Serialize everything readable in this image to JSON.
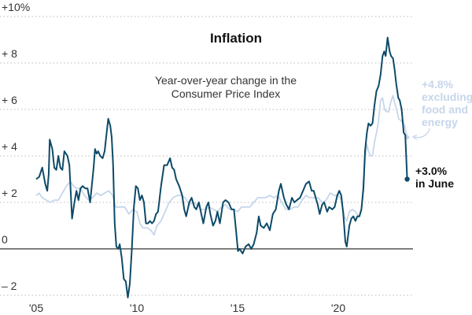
{
  "chart_data": {
    "type": "line",
    "title": "Inflation",
    "subtitle": [
      "Year-over-year change in the",
      "Consumer Price Index"
    ],
    "ylim": [
      -2,
      10
    ],
    "xlim": [
      2005,
      2023.5
    ],
    "grid": true,
    "y_ticks": [
      {
        "value": 10,
        "label": "+10%"
      },
      {
        "value": 8,
        "label": "+ 8"
      },
      {
        "value": 6,
        "label": "+ 6"
      },
      {
        "value": 4,
        "label": "+ 4"
      },
      {
        "value": 2,
        "label": "+ 2"
      },
      {
        "value": 0,
        "label": "0"
      },
      {
        "value": -2,
        "label": "– 2"
      }
    ],
    "x_ticks": [
      {
        "value": 2005,
        "label": "'05"
      },
      {
        "value": 2010,
        "label": "'10"
      },
      {
        "value": 2015,
        "label": "'15"
      },
      {
        "value": 2020,
        "label": "'20"
      }
    ],
    "colors": {
      "headline": "#0d4a68",
      "core": "#c6d6ea",
      "zero": "#333333",
      "grid": "#bbbbbb"
    },
    "series": [
      {
        "key": "headline",
        "label": [
          "+3.0%",
          "in June"
        ],
        "points": [
          [
            2005.0,
            3.0
          ],
          [
            2005.15,
            3.1
          ],
          [
            2005.3,
            3.5
          ],
          [
            2005.45,
            2.8
          ],
          [
            2005.55,
            2.5
          ],
          [
            2005.62,
            3.2
          ],
          [
            2005.67,
            4.7
          ],
          [
            2005.8,
            4.3
          ],
          [
            2005.9,
            3.5
          ],
          [
            2006.0,
            3.4
          ],
          [
            2006.1,
            4.0
          ],
          [
            2006.2,
            3.5
          ],
          [
            2006.3,
            3.4
          ],
          [
            2006.4,
            4.2
          ],
          [
            2006.55,
            4.0
          ],
          [
            2006.65,
            3.6
          ],
          [
            2006.78,
            1.3
          ],
          [
            2006.9,
            2.0
          ],
          [
            2007.0,
            2.5
          ],
          [
            2007.1,
            2.1
          ],
          [
            2007.2,
            2.6
          ],
          [
            2007.3,
            2.7
          ],
          [
            2007.45,
            2.6
          ],
          [
            2007.55,
            2.6
          ],
          [
            2007.68,
            2.0
          ],
          [
            2007.85,
            3.5
          ],
          [
            2007.92,
            4.3
          ],
          [
            2008.0,
            4.1
          ],
          [
            2008.08,
            4.2
          ],
          [
            2008.18,
            4.0
          ],
          [
            2008.3,
            3.9
          ],
          [
            2008.4,
            4.2
          ],
          [
            2008.5,
            5.0
          ],
          [
            2008.58,
            5.6
          ],
          [
            2008.68,
            5.3
          ],
          [
            2008.75,
            4.8
          ],
          [
            2008.82,
            3.6
          ],
          [
            2008.9,
            1.1
          ],
          [
            2008.98,
            0.1
          ],
          [
            2009.08,
            0.0
          ],
          [
            2009.15,
            0.2
          ],
          [
            2009.25,
            -0.4
          ],
          [
            2009.35,
            -1.3
          ],
          [
            2009.45,
            -1.4
          ],
          [
            2009.55,
            -2.1
          ],
          [
            2009.65,
            -1.5
          ],
          [
            2009.75,
            0.0
          ],
          [
            2009.85,
            1.8
          ],
          [
            2009.95,
            2.7
          ],
          [
            2010.05,
            2.6
          ],
          [
            2010.15,
            2.1
          ],
          [
            2010.25,
            2.3
          ],
          [
            2010.35,
            2.0
          ],
          [
            2010.45,
            1.1
          ],
          [
            2010.55,
            1.1
          ],
          [
            2010.65,
            1.2
          ],
          [
            2010.75,
            1.1
          ],
          [
            2010.85,
            1.2
          ],
          [
            2010.95,
            1.5
          ],
          [
            2011.05,
            1.6
          ],
          [
            2011.2,
            2.7
          ],
          [
            2011.35,
            3.6
          ],
          [
            2011.5,
            3.6
          ],
          [
            2011.65,
            3.9
          ],
          [
            2011.75,
            3.5
          ],
          [
            2011.85,
            3.4
          ],
          [
            2011.95,
            3.0
          ],
          [
            2012.1,
            2.7
          ],
          [
            2012.25,
            2.3
          ],
          [
            2012.35,
            1.7
          ],
          [
            2012.45,
            1.4
          ],
          [
            2012.6,
            2.0
          ],
          [
            2012.72,
            2.2
          ],
          [
            2012.85,
            1.8
          ],
          [
            2012.95,
            1.7
          ],
          [
            2013.08,
            2.0
          ],
          [
            2013.2,
            1.5
          ],
          [
            2013.3,
            1.1
          ],
          [
            2013.45,
            1.8
          ],
          [
            2013.55,
            2.0
          ],
          [
            2013.65,
            1.5
          ],
          [
            2013.78,
            1.0
          ],
          [
            2013.9,
            1.2
          ],
          [
            2014.0,
            1.6
          ],
          [
            2014.12,
            1.1
          ],
          [
            2014.28,
            2.0
          ],
          [
            2014.4,
            2.1
          ],
          [
            2014.55,
            2.0
          ],
          [
            2014.7,
            1.7
          ],
          [
            2014.82,
            1.7
          ],
          [
            2014.92,
            0.8
          ],
          [
            2015.02,
            -0.1
          ],
          [
            2015.1,
            0.0
          ],
          [
            2015.25,
            -0.2
          ],
          [
            2015.4,
            0.1
          ],
          [
            2015.55,
            0.2
          ],
          [
            2015.68,
            0.0
          ],
          [
            2015.8,
            0.2
          ],
          [
            2015.95,
            0.7
          ],
          [
            2016.05,
            1.4
          ],
          [
            2016.15,
            1.0
          ],
          [
            2016.3,
            0.9
          ],
          [
            2016.45,
            1.1
          ],
          [
            2016.6,
            0.8
          ],
          [
            2016.75,
            1.5
          ],
          [
            2016.9,
            1.7
          ],
          [
            2017.05,
            2.5
          ],
          [
            2017.15,
            2.8
          ],
          [
            2017.3,
            2.2
          ],
          [
            2017.42,
            1.9
          ],
          [
            2017.55,
            1.7
          ],
          [
            2017.7,
            2.2
          ],
          [
            2017.82,
            2.0
          ],
          [
            2017.95,
            2.1
          ],
          [
            2018.1,
            2.2
          ],
          [
            2018.25,
            2.5
          ],
          [
            2018.4,
            2.8
          ],
          [
            2018.55,
            2.9
          ],
          [
            2018.68,
            2.5
          ],
          [
            2018.78,
            2.5
          ],
          [
            2018.88,
            2.2
          ],
          [
            2018.98,
            1.9
          ],
          [
            2019.08,
            1.5
          ],
          [
            2019.2,
            1.9
          ],
          [
            2019.3,
            2.0
          ],
          [
            2019.45,
            1.6
          ],
          [
            2019.55,
            1.8
          ],
          [
            2019.7,
            1.7
          ],
          [
            2019.82,
            1.8
          ],
          [
            2019.95,
            2.3
          ],
          [
            2020.05,
            2.5
          ],
          [
            2020.15,
            2.3
          ],
          [
            2020.25,
            1.5
          ],
          [
            2020.35,
            0.3
          ],
          [
            2020.42,
            0.1
          ],
          [
            2020.55,
            1.0
          ],
          [
            2020.65,
            1.3
          ],
          [
            2020.75,
            1.4
          ],
          [
            2020.85,
            1.2
          ],
          [
            2020.95,
            1.4
          ],
          [
            2021.05,
            1.4
          ],
          [
            2021.15,
            1.7
          ],
          [
            2021.25,
            2.6
          ],
          [
            2021.33,
            4.2
          ],
          [
            2021.42,
            5.0
          ],
          [
            2021.5,
            5.4
          ],
          [
            2021.6,
            5.3
          ],
          [
            2021.7,
            5.4
          ],
          [
            2021.8,
            6.2
          ],
          [
            2021.9,
            6.8
          ],
          [
            2022.0,
            7.0
          ],
          [
            2022.1,
            7.5
          ],
          [
            2022.2,
            8.3
          ],
          [
            2022.28,
            8.5
          ],
          [
            2022.35,
            8.3
          ],
          [
            2022.45,
            9.1
          ],
          [
            2022.55,
            8.5
          ],
          [
            2022.62,
            8.3
          ],
          [
            2022.72,
            8.2
          ],
          [
            2022.8,
            7.7
          ],
          [
            2022.88,
            7.1
          ],
          [
            2022.98,
            6.5
          ],
          [
            2023.05,
            6.4
          ],
          [
            2023.15,
            6.0
          ],
          [
            2023.25,
            5.0
          ],
          [
            2023.33,
            4.9
          ],
          [
            2023.42,
            3.0
          ]
        ]
      },
      {
        "key": "core",
        "label": [
          "+4.8%",
          "excluding",
          "food and",
          "energy"
        ],
        "points": [
          [
            2005.0,
            2.3
          ],
          [
            2005.15,
            2.4
          ],
          [
            2005.3,
            2.2
          ],
          [
            2005.5,
            2.1
          ],
          [
            2005.7,
            2.0
          ],
          [
            2005.9,
            2.1
          ],
          [
            2006.1,
            2.1
          ],
          [
            2006.3,
            2.4
          ],
          [
            2006.5,
            2.7
          ],
          [
            2006.7,
            2.9
          ],
          [
            2006.85,
            2.7
          ],
          [
            2007.0,
            2.6
          ],
          [
            2007.2,
            2.6
          ],
          [
            2007.4,
            2.3
          ],
          [
            2007.6,
            2.1
          ],
          [
            2007.8,
            2.2
          ],
          [
            2008.0,
            2.4
          ],
          [
            2008.2,
            2.3
          ],
          [
            2008.4,
            2.4
          ],
          [
            2008.6,
            2.5
          ],
          [
            2008.8,
            2.3
          ],
          [
            2008.95,
            1.8
          ],
          [
            2009.2,
            1.8
          ],
          [
            2009.4,
            1.8
          ],
          [
            2009.6,
            1.5
          ],
          [
            2009.8,
            1.7
          ],
          [
            2010.0,
            1.6
          ],
          [
            2010.15,
            1.1
          ],
          [
            2010.3,
            0.9
          ],
          [
            2010.5,
            0.9
          ],
          [
            2010.7,
            0.8
          ],
          [
            2010.85,
            0.6
          ],
          [
            2011.0,
            1.0
          ],
          [
            2011.2,
            1.2
          ],
          [
            2011.4,
            1.6
          ],
          [
            2011.6,
            2.0
          ],
          [
            2011.8,
            2.2
          ],
          [
            2012.0,
            2.3
          ],
          [
            2012.2,
            2.3
          ],
          [
            2012.4,
            2.2
          ],
          [
            2012.6,
            1.9
          ],
          [
            2012.8,
            2.0
          ],
          [
            2013.0,
            1.9
          ],
          [
            2013.2,
            1.7
          ],
          [
            2013.4,
            1.7
          ],
          [
            2013.6,
            1.8
          ],
          [
            2013.8,
            1.7
          ],
          [
            2014.0,
            1.6
          ],
          [
            2014.2,
            1.8
          ],
          [
            2014.4,
            1.9
          ],
          [
            2014.6,
            1.7
          ],
          [
            2014.8,
            1.7
          ],
          [
            2015.0,
            1.6
          ],
          [
            2015.2,
            1.8
          ],
          [
            2015.4,
            1.8
          ],
          [
            2015.6,
            1.8
          ],
          [
            2015.8,
            2.0
          ],
          [
            2016.0,
            2.2
          ],
          [
            2016.2,
            2.2
          ],
          [
            2016.4,
            2.2
          ],
          [
            2016.6,
            2.3
          ],
          [
            2016.8,
            2.2
          ],
          [
            2017.0,
            2.3
          ],
          [
            2017.2,
            2.0
          ],
          [
            2017.4,
            1.7
          ],
          [
            2017.6,
            1.7
          ],
          [
            2017.8,
            1.8
          ],
          [
            2018.0,
            1.8
          ],
          [
            2018.2,
            2.1
          ],
          [
            2018.4,
            2.3
          ],
          [
            2018.6,
            2.2
          ],
          [
            2018.8,
            2.2
          ],
          [
            2019.0,
            2.2
          ],
          [
            2019.2,
            2.0
          ],
          [
            2019.4,
            2.1
          ],
          [
            2019.6,
            2.4
          ],
          [
            2019.8,
            2.3
          ],
          [
            2020.0,
            2.3
          ],
          [
            2020.15,
            2.1
          ],
          [
            2020.3,
            1.4
          ],
          [
            2020.42,
            1.2
          ],
          [
            2020.55,
            1.6
          ],
          [
            2020.7,
            1.7
          ],
          [
            2020.85,
            1.6
          ],
          [
            2021.0,
            1.4
          ],
          [
            2021.15,
            1.6
          ],
          [
            2021.25,
            3.0
          ],
          [
            2021.35,
            4.0
          ],
          [
            2021.42,
            4.5
          ],
          [
            2021.5,
            4.2
          ],
          [
            2021.6,
            4.0
          ],
          [
            2021.7,
            4.0
          ],
          [
            2021.8,
            4.6
          ],
          [
            2021.9,
            5.0
          ],
          [
            2022.0,
            5.5
          ],
          [
            2022.1,
            6.4
          ],
          [
            2022.2,
            6.5
          ],
          [
            2022.3,
            6.0
          ],
          [
            2022.4,
            5.9
          ],
          [
            2022.5,
            5.9
          ],
          [
            2022.6,
            6.3
          ],
          [
            2022.72,
            6.6
          ],
          [
            2022.8,
            6.3
          ],
          [
            2022.9,
            6.0
          ],
          [
            2023.0,
            5.6
          ],
          [
            2023.15,
            5.5
          ],
          [
            2023.3,
            5.3
          ],
          [
            2023.42,
            4.8
          ]
        ]
      }
    ]
  }
}
